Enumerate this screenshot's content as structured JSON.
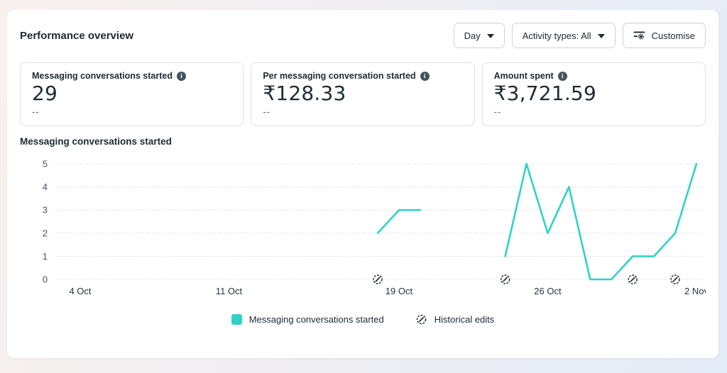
{
  "header": {
    "title": "Performance overview"
  },
  "controls": {
    "time_breakdown": {
      "label": "Day"
    },
    "activity_types": {
      "label": "Activity types: All"
    },
    "customise": {
      "label": "Customise"
    }
  },
  "metric_cards": [
    {
      "label": "Messaging conversations started",
      "value": "29",
      "secondary": "--"
    },
    {
      "label": "Per messaging conversation started",
      "value": "₹128.33",
      "secondary": "--"
    },
    {
      "label": "Amount spent",
      "value": "₹3,721.59",
      "secondary": "--"
    }
  ],
  "chart_section": {
    "title": "Messaging conversations started"
  },
  "chart_data": {
    "type": "line",
    "title": "Messaging conversations started",
    "ylim": [
      0,
      5
    ],
    "yticks": [
      0,
      1,
      2,
      3,
      4,
      5
    ],
    "grid": true,
    "legend_position": "bottom",
    "x_axis": {
      "total_days": 30,
      "ticks": [
        {
          "day": 0,
          "label": "4 Oct"
        },
        {
          "day": 7,
          "label": "11 Oct"
        },
        {
          "day": 15,
          "label": "19 Oct"
        },
        {
          "day": 22,
          "label": "26 Oct"
        },
        {
          "day": 29,
          "label": "2 Nov"
        }
      ]
    },
    "series": [
      {
        "name": "Messaging conversations started",
        "color": "#30d2c6",
        "segments": [
          [
            {
              "day": 14,
              "date": "18 Oct",
              "value": 2
            },
            {
              "day": 15,
              "date": "19 Oct",
              "value": 3
            },
            {
              "day": 16,
              "date": "20 Oct",
              "value": 3
            }
          ],
          [
            {
              "day": 20,
              "date": "24 Oct",
              "value": 1
            },
            {
              "day": 21,
              "date": "25 Oct",
              "value": 5
            },
            {
              "day": 22,
              "date": "26 Oct",
              "value": 2
            },
            {
              "day": 23,
              "date": "27 Oct",
              "value": 4
            },
            {
              "day": 24,
              "date": "28 Oct",
              "value": 0
            },
            {
              "day": 25,
              "date": "29 Oct",
              "value": 0
            },
            {
              "day": 26,
              "date": "30 Oct",
              "value": 1
            },
            {
              "day": 27,
              "date": "31 Oct",
              "value": 1
            },
            {
              "day": 28,
              "date": "1 Nov",
              "value": 2
            },
            {
              "day": 29,
              "date": "2 Nov",
              "value": 5
            }
          ]
        ]
      }
    ],
    "historical_edits": [
      {
        "day": 14,
        "date": "18 Oct"
      },
      {
        "day": 20,
        "date": "24 Oct"
      },
      {
        "day": 26,
        "date": "30 Oct"
      },
      {
        "day": 28,
        "date": "1 Nov"
      }
    ],
    "legend": [
      {
        "label": "Messaging conversations started",
        "swatch": "square",
        "color": "#30d2c6"
      },
      {
        "label": "Historical edits",
        "swatch": "pencil-circle-icon"
      }
    ]
  },
  "colors": {
    "accent_teal": "#30d2c6",
    "text_dark": "#1c2b33",
    "grid": "#dcdfe3",
    "card_border": "#dbdfe4"
  }
}
